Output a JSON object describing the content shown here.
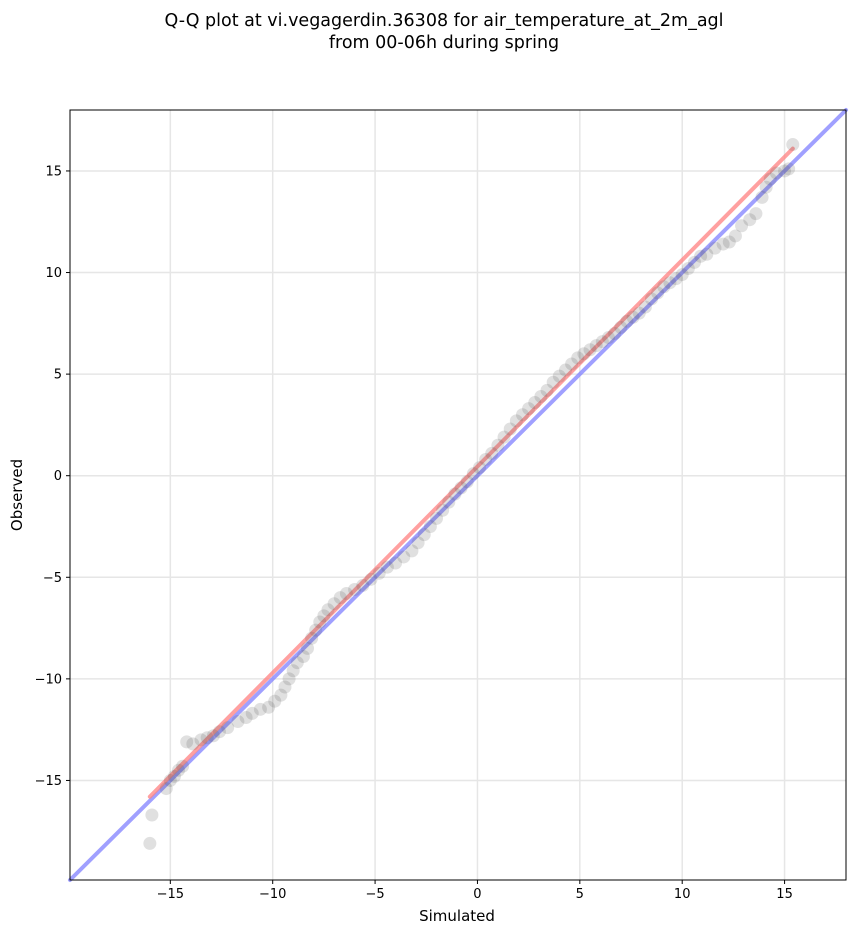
{
  "chart_data": {
    "type": "scatter",
    "title_lines": [
      "Q-Q plot at vi.vegagerdin.36308 for air_temperature_at_2m_agl",
      "from 00-06h during spring"
    ],
    "xlabel": "Simulated",
    "ylabel": "Observed",
    "xlim": [
      -19.9,
      18.0
    ],
    "ylim": [
      -19.9,
      18.0
    ],
    "grid": true,
    "x_ticks": [
      -15,
      -10,
      -5,
      0,
      5,
      10,
      15
    ],
    "y_ticks": [
      -15,
      -10,
      -5,
      0,
      5,
      10,
      15
    ],
    "x_tick_labels": [
      "−15",
      "−10",
      "−5",
      "0",
      "5",
      "10",
      "15"
    ],
    "y_tick_labels": [
      "−15",
      "−10",
      "−5",
      "0",
      "5",
      "10",
      "15"
    ],
    "reference_line": {
      "description": "1:1 line",
      "color": "#8080ff",
      "x": [
        -19.9,
        18.0
      ],
      "y": [
        -19.9,
        18.0
      ]
    },
    "fit_line": {
      "color": "#ff8080",
      "x": [
        -16.0,
        15.4
      ],
      "y": [
        -15.8,
        16.1
      ]
    },
    "point_color": "#555555",
    "points": [
      [
        -16.0,
        -18.1
      ],
      [
        -15.9,
        -16.7
      ],
      [
        -15.2,
        -15.4
      ],
      [
        -15.0,
        -15.0
      ],
      [
        -14.8,
        -14.8
      ],
      [
        -14.6,
        -14.5
      ],
      [
        -14.4,
        -14.3
      ],
      [
        -14.2,
        -13.1
      ],
      [
        -13.9,
        -13.2
      ],
      [
        -13.5,
        -13.0
      ],
      [
        -13.2,
        -12.9
      ],
      [
        -12.9,
        -12.8
      ],
      [
        -12.6,
        -12.6
      ],
      [
        -12.2,
        -12.4
      ],
      [
        -11.7,
        -12.1
      ],
      [
        -11.3,
        -11.9
      ],
      [
        -11.0,
        -11.7
      ],
      [
        -10.6,
        -11.5
      ],
      [
        -10.2,
        -11.4
      ],
      [
        -9.9,
        -11.1
      ],
      [
        -9.6,
        -10.8
      ],
      [
        -9.4,
        -10.4
      ],
      [
        -9.2,
        -10.0
      ],
      [
        -9.0,
        -9.6
      ],
      [
        -8.8,
        -9.2
      ],
      [
        -8.5,
        -8.9
      ],
      [
        -8.3,
        -8.5
      ],
      [
        -8.1,
        -8.0
      ],
      [
        -7.9,
        -7.6
      ],
      [
        -7.7,
        -7.2
      ],
      [
        -7.5,
        -6.9
      ],
      [
        -7.3,
        -6.6
      ],
      [
        -7.0,
        -6.3
      ],
      [
        -6.7,
        -6.0
      ],
      [
        -6.4,
        -5.8
      ],
      [
        -6.0,
        -5.6
      ],
      [
        -5.6,
        -5.4
      ],
      [
        -5.2,
        -5.1
      ],
      [
        -4.8,
        -4.8
      ],
      [
        -4.4,
        -4.5
      ],
      [
        -4.0,
        -4.3
      ],
      [
        -3.6,
        -4.0
      ],
      [
        -3.2,
        -3.7
      ],
      [
        -2.9,
        -3.3
      ],
      [
        -2.6,
        -2.9
      ],
      [
        -2.3,
        -2.5
      ],
      [
        -2.0,
        -2.1
      ],
      [
        -1.7,
        -1.7
      ],
      [
        -1.4,
        -1.3
      ],
      [
        -1.1,
        -0.9
      ],
      [
        -0.8,
        -0.6
      ],
      [
        -0.5,
        -0.3
      ],
      [
        -0.2,
        0.1
      ],
      [
        0.1,
        0.4
      ],
      [
        0.4,
        0.8
      ],
      [
        0.7,
        1.1
      ],
      [
        1.0,
        1.5
      ],
      [
        1.3,
        1.9
      ],
      [
        1.6,
        2.3
      ],
      [
        1.9,
        2.7
      ],
      [
        2.2,
        3.0
      ],
      [
        2.5,
        3.3
      ],
      [
        2.8,
        3.6
      ],
      [
        3.1,
        3.9
      ],
      [
        3.4,
        4.2
      ],
      [
        3.7,
        4.6
      ],
      [
        4.0,
        4.9
      ],
      [
        4.3,
        5.2
      ],
      [
        4.6,
        5.5
      ],
      [
        4.9,
        5.8
      ],
      [
        5.2,
        6.0
      ],
      [
        5.5,
        6.2
      ],
      [
        5.8,
        6.4
      ],
      [
        6.1,
        6.6
      ],
      [
        6.4,
        6.8
      ],
      [
        6.7,
        7.0
      ],
      [
        7.0,
        7.3
      ],
      [
        7.3,
        7.6
      ],
      [
        7.6,
        7.8
      ],
      [
        7.9,
        8.0
      ],
      [
        8.2,
        8.3
      ],
      [
        8.5,
        8.7
      ],
      [
        8.8,
        9.0
      ],
      [
        9.1,
        9.3
      ],
      [
        9.4,
        9.5
      ],
      [
        9.7,
        9.7
      ],
      [
        10.0,
        9.9
      ],
      [
        10.3,
        10.2
      ],
      [
        10.6,
        10.5
      ],
      [
        10.9,
        10.8
      ],
      [
        11.2,
        10.9
      ],
      [
        11.6,
        11.2
      ],
      [
        12.0,
        11.4
      ],
      [
        12.3,
        11.5
      ],
      [
        12.6,
        11.8
      ],
      [
        12.9,
        12.3
      ],
      [
        13.3,
        12.6
      ],
      [
        13.6,
        12.9
      ],
      [
        13.9,
        13.7
      ],
      [
        14.1,
        14.2
      ],
      [
        14.3,
        14.6
      ],
      [
        14.6,
        14.9
      ],
      [
        15.0,
        15.0
      ],
      [
        15.2,
        15.1
      ],
      [
        15.4,
        16.3
      ]
    ]
  }
}
